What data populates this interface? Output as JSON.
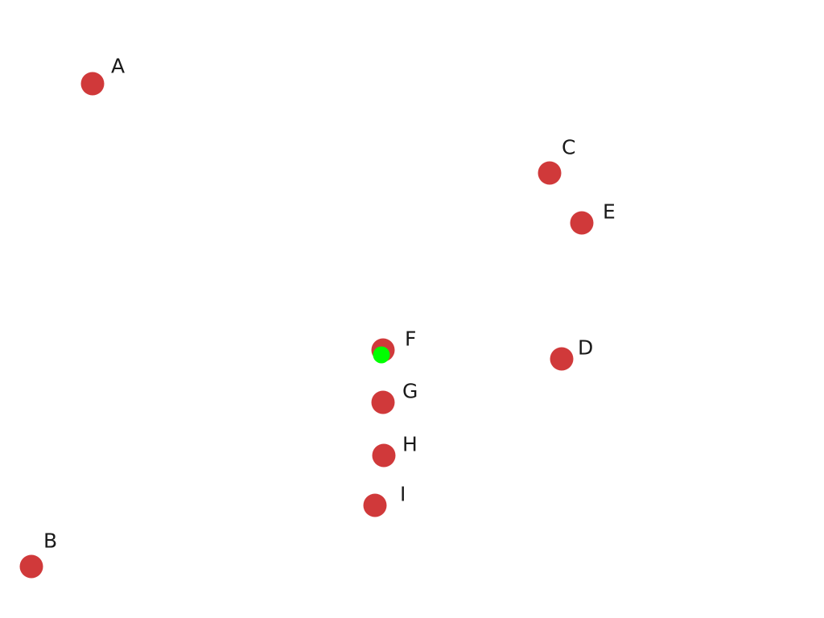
{
  "colors": {
    "background": "#ffffff",
    "point": "#d0393a",
    "label": "#1a1a1a",
    "cursor": "#00ff00"
  },
  "points": [
    {
      "label": "A"
    },
    {
      "label": "B"
    },
    {
      "label": "C"
    },
    {
      "label": "D"
    },
    {
      "label": "E"
    },
    {
      "label": "F"
    },
    {
      "label": "G"
    },
    {
      "label": "H"
    },
    {
      "label": "I"
    }
  ],
  "cursor": {
    "icon": "cursor-dot-icon"
  }
}
